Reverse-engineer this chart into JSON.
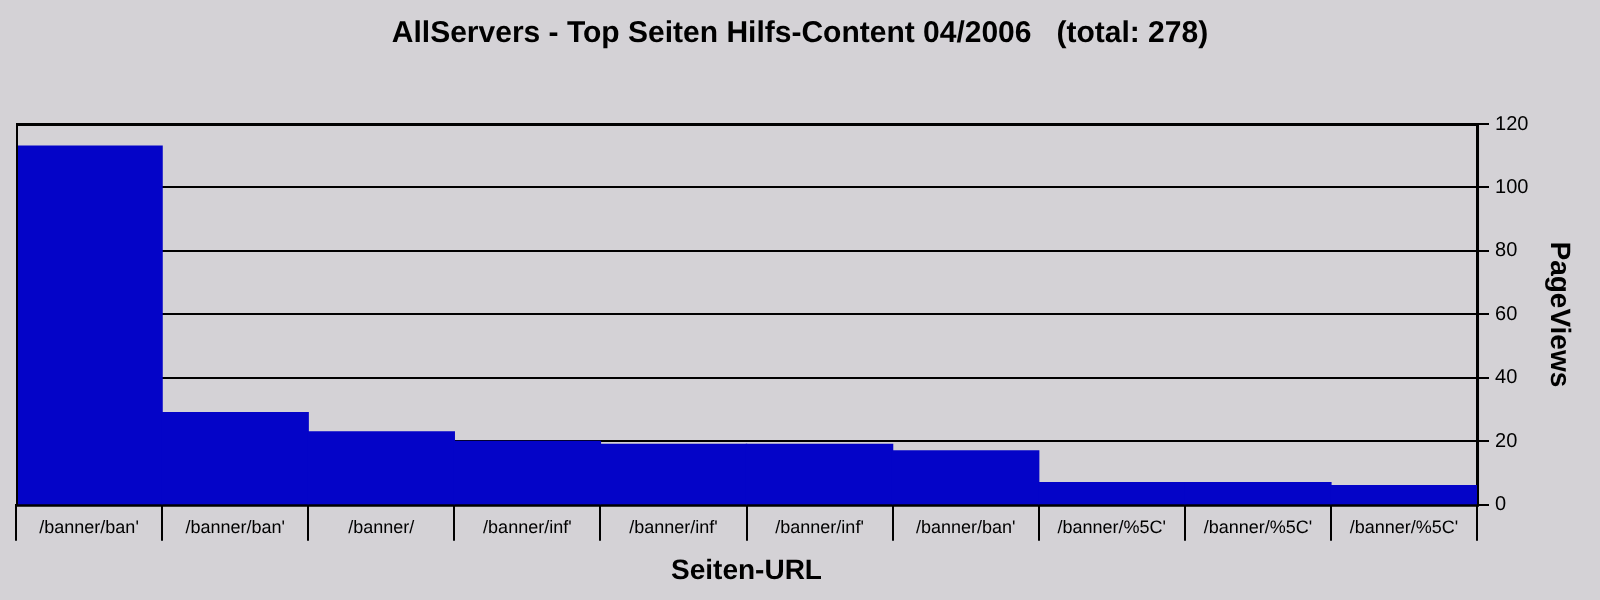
{
  "chart_data": {
    "type": "bar",
    "title": "AllServers - Top Seiten Hilfs-Content 04/2006   (total: 278)",
    "xlabel": "Seiten-URL",
    "ylabel": "PageViews",
    "categories": [
      "/banner/ban'",
      "/banner/ban'",
      "/banner/",
      "/banner/inf'",
      "/banner/inf'",
      "/banner/inf'",
      "/banner/ban'",
      "/banner/%5C'",
      "/banner/%5C'",
      "/banner/%5C'"
    ],
    "values": [
      113,
      29,
      23,
      20,
      19,
      19,
      17,
      7,
      7,
      6
    ],
    "color": "#0404c8",
    "ylim": [
      0,
      120
    ],
    "yticks": [
      0,
      20,
      40,
      60,
      80,
      100,
      120
    ],
    "grid": "y",
    "legend": false
  }
}
